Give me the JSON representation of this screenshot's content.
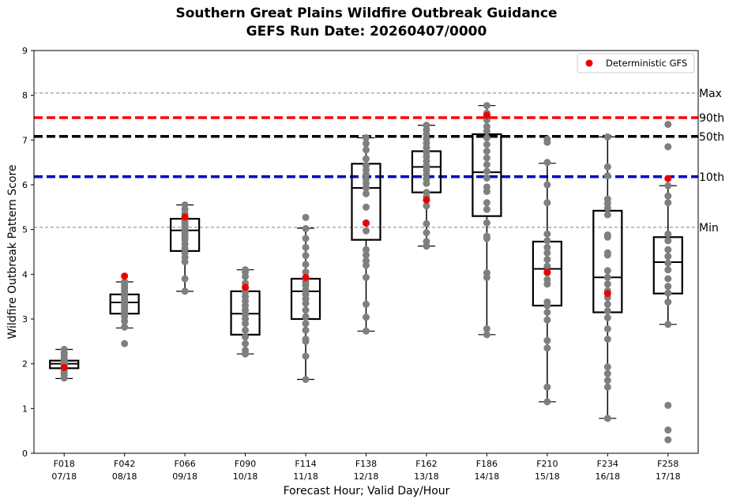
{
  "chart_data": {
    "type": "box",
    "title": "Southern Great Plains Wildfire Outbreak Guidance",
    "subtitle": "GEFS Run Date: 20260407/0000",
    "xlabel": "Forecast Hour; Valid Day/Hour",
    "ylabel": "Wildfire Outbreak Pattern Score",
    "ylim": [
      0,
      9
    ],
    "yticks": [
      "0",
      "1",
      "2",
      "3",
      "4",
      "5",
      "6",
      "7",
      "8",
      "9"
    ],
    "categories": [
      {
        "hour": "F018",
        "valid": "07/18"
      },
      {
        "hour": "F042",
        "valid": "08/18"
      },
      {
        "hour": "F066",
        "valid": "09/18"
      },
      {
        "hour": "F090",
        "valid": "10/18"
      },
      {
        "hour": "F114",
        "valid": "11/18"
      },
      {
        "hour": "F138",
        "valid": "12/18"
      },
      {
        "hour": "F162",
        "valid": "13/18"
      },
      {
        "hour": "F186",
        "valid": "14/18"
      },
      {
        "hour": "F210",
        "valid": "15/18"
      },
      {
        "hour": "F234",
        "valid": "16/18"
      },
      {
        "hour": "F258",
        "valid": "17/18"
      }
    ],
    "boxes": [
      {
        "q1": 1.9,
        "median": 2.0,
        "q3": 2.07,
        "whisker_low": 1.67,
        "whisker_high": 2.32
      },
      {
        "q1": 3.12,
        "median": 3.37,
        "q3": 3.55,
        "whisker_low": 2.8,
        "whisker_high": 3.83
      },
      {
        "q1": 4.52,
        "median": 4.98,
        "q3": 5.24,
        "whisker_low": 3.62,
        "whisker_high": 5.55
      },
      {
        "q1": 2.65,
        "median": 3.12,
        "q3": 3.62,
        "whisker_low": 2.22,
        "whisker_high": 4.1
      },
      {
        "q1": 3.0,
        "median": 3.62,
        "q3": 3.9,
        "whisker_low": 1.65,
        "whisker_high": 5.03
      },
      {
        "q1": 4.77,
        "median": 5.93,
        "q3": 6.47,
        "whisker_low": 2.73,
        "whisker_high": 7.05
      },
      {
        "q1": 5.83,
        "median": 6.4,
        "q3": 6.75,
        "whisker_low": 4.63,
        "whisker_high": 7.33
      },
      {
        "q1": 5.3,
        "median": 6.28,
        "q3": 7.13,
        "whisker_low": 2.65,
        "whisker_high": 7.77
      },
      {
        "q1": 3.3,
        "median": 4.12,
        "q3": 4.73,
        "whisker_low": 1.15,
        "whisker_high": 6.48
      },
      {
        "q1": 3.15,
        "median": 3.93,
        "q3": 5.42,
        "whisker_low": 0.78,
        "whisker_high": 7.07
      },
      {
        "q1": 3.57,
        "median": 4.27,
        "q3": 4.83,
        "whisker_low": 2.88,
        "whisker_high": 5.98
      }
    ],
    "members": [
      [
        1.68,
        1.75,
        1.8,
        1.86,
        1.9,
        1.93,
        1.97,
        2.0,
        2.02,
        2.05,
        2.08,
        2.12,
        2.18,
        2.24,
        2.32
      ],
      [
        2.45,
        2.82,
        2.95,
        3.05,
        3.12,
        3.18,
        3.22,
        3.27,
        3.32,
        3.37,
        3.42,
        3.47,
        3.52,
        3.57,
        3.62,
        3.67,
        3.72,
        3.77,
        3.83
      ],
      [
        3.62,
        3.9,
        4.28,
        4.38,
        4.48,
        4.58,
        4.68,
        4.78,
        4.85,
        4.92,
        4.98,
        5.02,
        5.08,
        5.13,
        5.18,
        5.22,
        5.27,
        5.35,
        5.45,
        5.55
      ],
      [
        2.22,
        2.3,
        2.45,
        2.6,
        2.75,
        2.9,
        3.0,
        3.1,
        3.2,
        3.3,
        3.4,
        3.5,
        3.6,
        3.7,
        3.8,
        3.95,
        4.05,
        4.1
      ],
      [
        1.65,
        2.17,
        2.5,
        2.55,
        2.75,
        2.9,
        3.05,
        3.2,
        3.35,
        3.45,
        3.55,
        3.65,
        3.75,
        3.82,
        3.9,
        4.05,
        4.22,
        4.42,
        4.6,
        4.8,
        5.02,
        5.27
      ],
      [
        2.73,
        3.04,
        3.33,
        3.93,
        4.2,
        4.3,
        4.43,
        4.55,
        4.97,
        5.15,
        5.5,
        5.8,
        5.93,
        6.03,
        6.13,
        6.23,
        6.33,
        6.43,
        6.58,
        6.78,
        6.92,
        7.05
      ],
      [
        4.63,
        4.73,
        4.93,
        5.13,
        5.53,
        5.73,
        5.83,
        6.03,
        6.13,
        6.23,
        6.33,
        6.43,
        6.53,
        6.63,
        6.73,
        6.83,
        6.93,
        7.03,
        7.13,
        7.23,
        7.33
      ],
      [
        2.65,
        2.78,
        3.93,
        4.03,
        4.8,
        4.85,
        5.15,
        5.45,
        5.6,
        5.85,
        5.95,
        6.15,
        6.3,
        6.45,
        6.6,
        6.75,
        6.9,
        7.05,
        7.2,
        7.3,
        7.45,
        7.6,
        7.77
      ],
      [
        1.15,
        1.48,
        2.35,
        2.52,
        2.98,
        3.15,
        3.3,
        3.38,
        3.78,
        3.88,
        4.03,
        4.18,
        4.33,
        4.48,
        4.6,
        4.75,
        4.9,
        5.6,
        6.0,
        6.5,
        6.95,
        7.02
      ],
      [
        0.78,
        1.48,
        1.63,
        1.78,
        1.93,
        2.55,
        2.78,
        3.03,
        3.18,
        3.33,
        3.48,
        3.63,
        3.78,
        3.93,
        4.08,
        4.43,
        4.48,
        4.83,
        4.88,
        5.33,
        5.48,
        5.58,
        5.68,
        6.2,
        6.4,
        7.07
      ],
      [
        0.3,
        0.52,
        1.07,
        2.88,
        3.38,
        3.58,
        3.73,
        3.9,
        4.1,
        4.25,
        4.4,
        4.55,
        4.75,
        4.9,
        5.6,
        5.75,
        5.98,
        6.85,
        7.35
      ]
    ],
    "deterministic_gfs": [
      1.92,
      3.96,
      5.28,
      3.71,
      3.93,
      5.14,
      5.66,
      7.55,
      4.05,
      3.57,
      6.14
    ],
    "reference_lines": [
      {
        "name": "Max",
        "value": 8.05,
        "label": "Max",
        "color": "#808080",
        "style": "thin-dashed"
      },
      {
        "name": "p90",
        "value": 7.5,
        "label": "90th",
        "color": "#ff0000",
        "style": "thick-dashed"
      },
      {
        "name": "p50",
        "value": 7.08,
        "label": "50th",
        "color": "#000000",
        "style": "thick-dashed"
      },
      {
        "name": "p10",
        "value": 6.18,
        "label": "10th",
        "color": "#0000cc",
        "style": "thick-dashed"
      },
      {
        "name": "Min",
        "value": 5.05,
        "label": "Min",
        "color": "#808080",
        "style": "thin-dashed"
      }
    ],
    "legend": {
      "label": "Deterministic GFS",
      "position": "top-right"
    },
    "colors": {
      "member": "#7f7f7f",
      "deterministic": "#ee0000",
      "box": "#000000"
    }
  }
}
